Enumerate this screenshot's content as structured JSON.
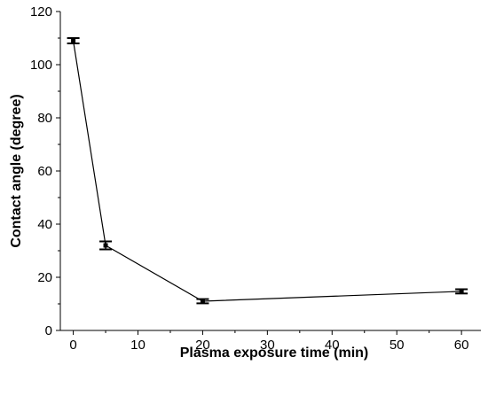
{
  "chart_data": {
    "type": "line",
    "title": "",
    "xlabel": "Plasma exposure time (min)",
    "ylabel": "Contact angle (degree)",
    "xlim": [
      -2,
      63
    ],
    "ylim": [
      0,
      120
    ],
    "x_ticks": [
      0,
      10,
      20,
      30,
      40,
      50,
      60
    ],
    "y_ticks": [
      0,
      20,
      40,
      60,
      80,
      100,
      120
    ],
    "x_tick_labels": [
      "0",
      "10",
      "20",
      "30",
      "40",
      "50",
      "60"
    ],
    "y_tick_labels": [
      "0",
      "20",
      "40",
      "60",
      "80",
      "100",
      "120"
    ],
    "grid": false,
    "series": [
      {
        "x": [
          0,
          5,
          20,
          60
        ],
        "y": [
          109,
          32,
          11,
          14.7
        ],
        "error": [
          1,
          1.5,
          0.8,
          0.8
        ],
        "color": "#000000"
      }
    ]
  }
}
